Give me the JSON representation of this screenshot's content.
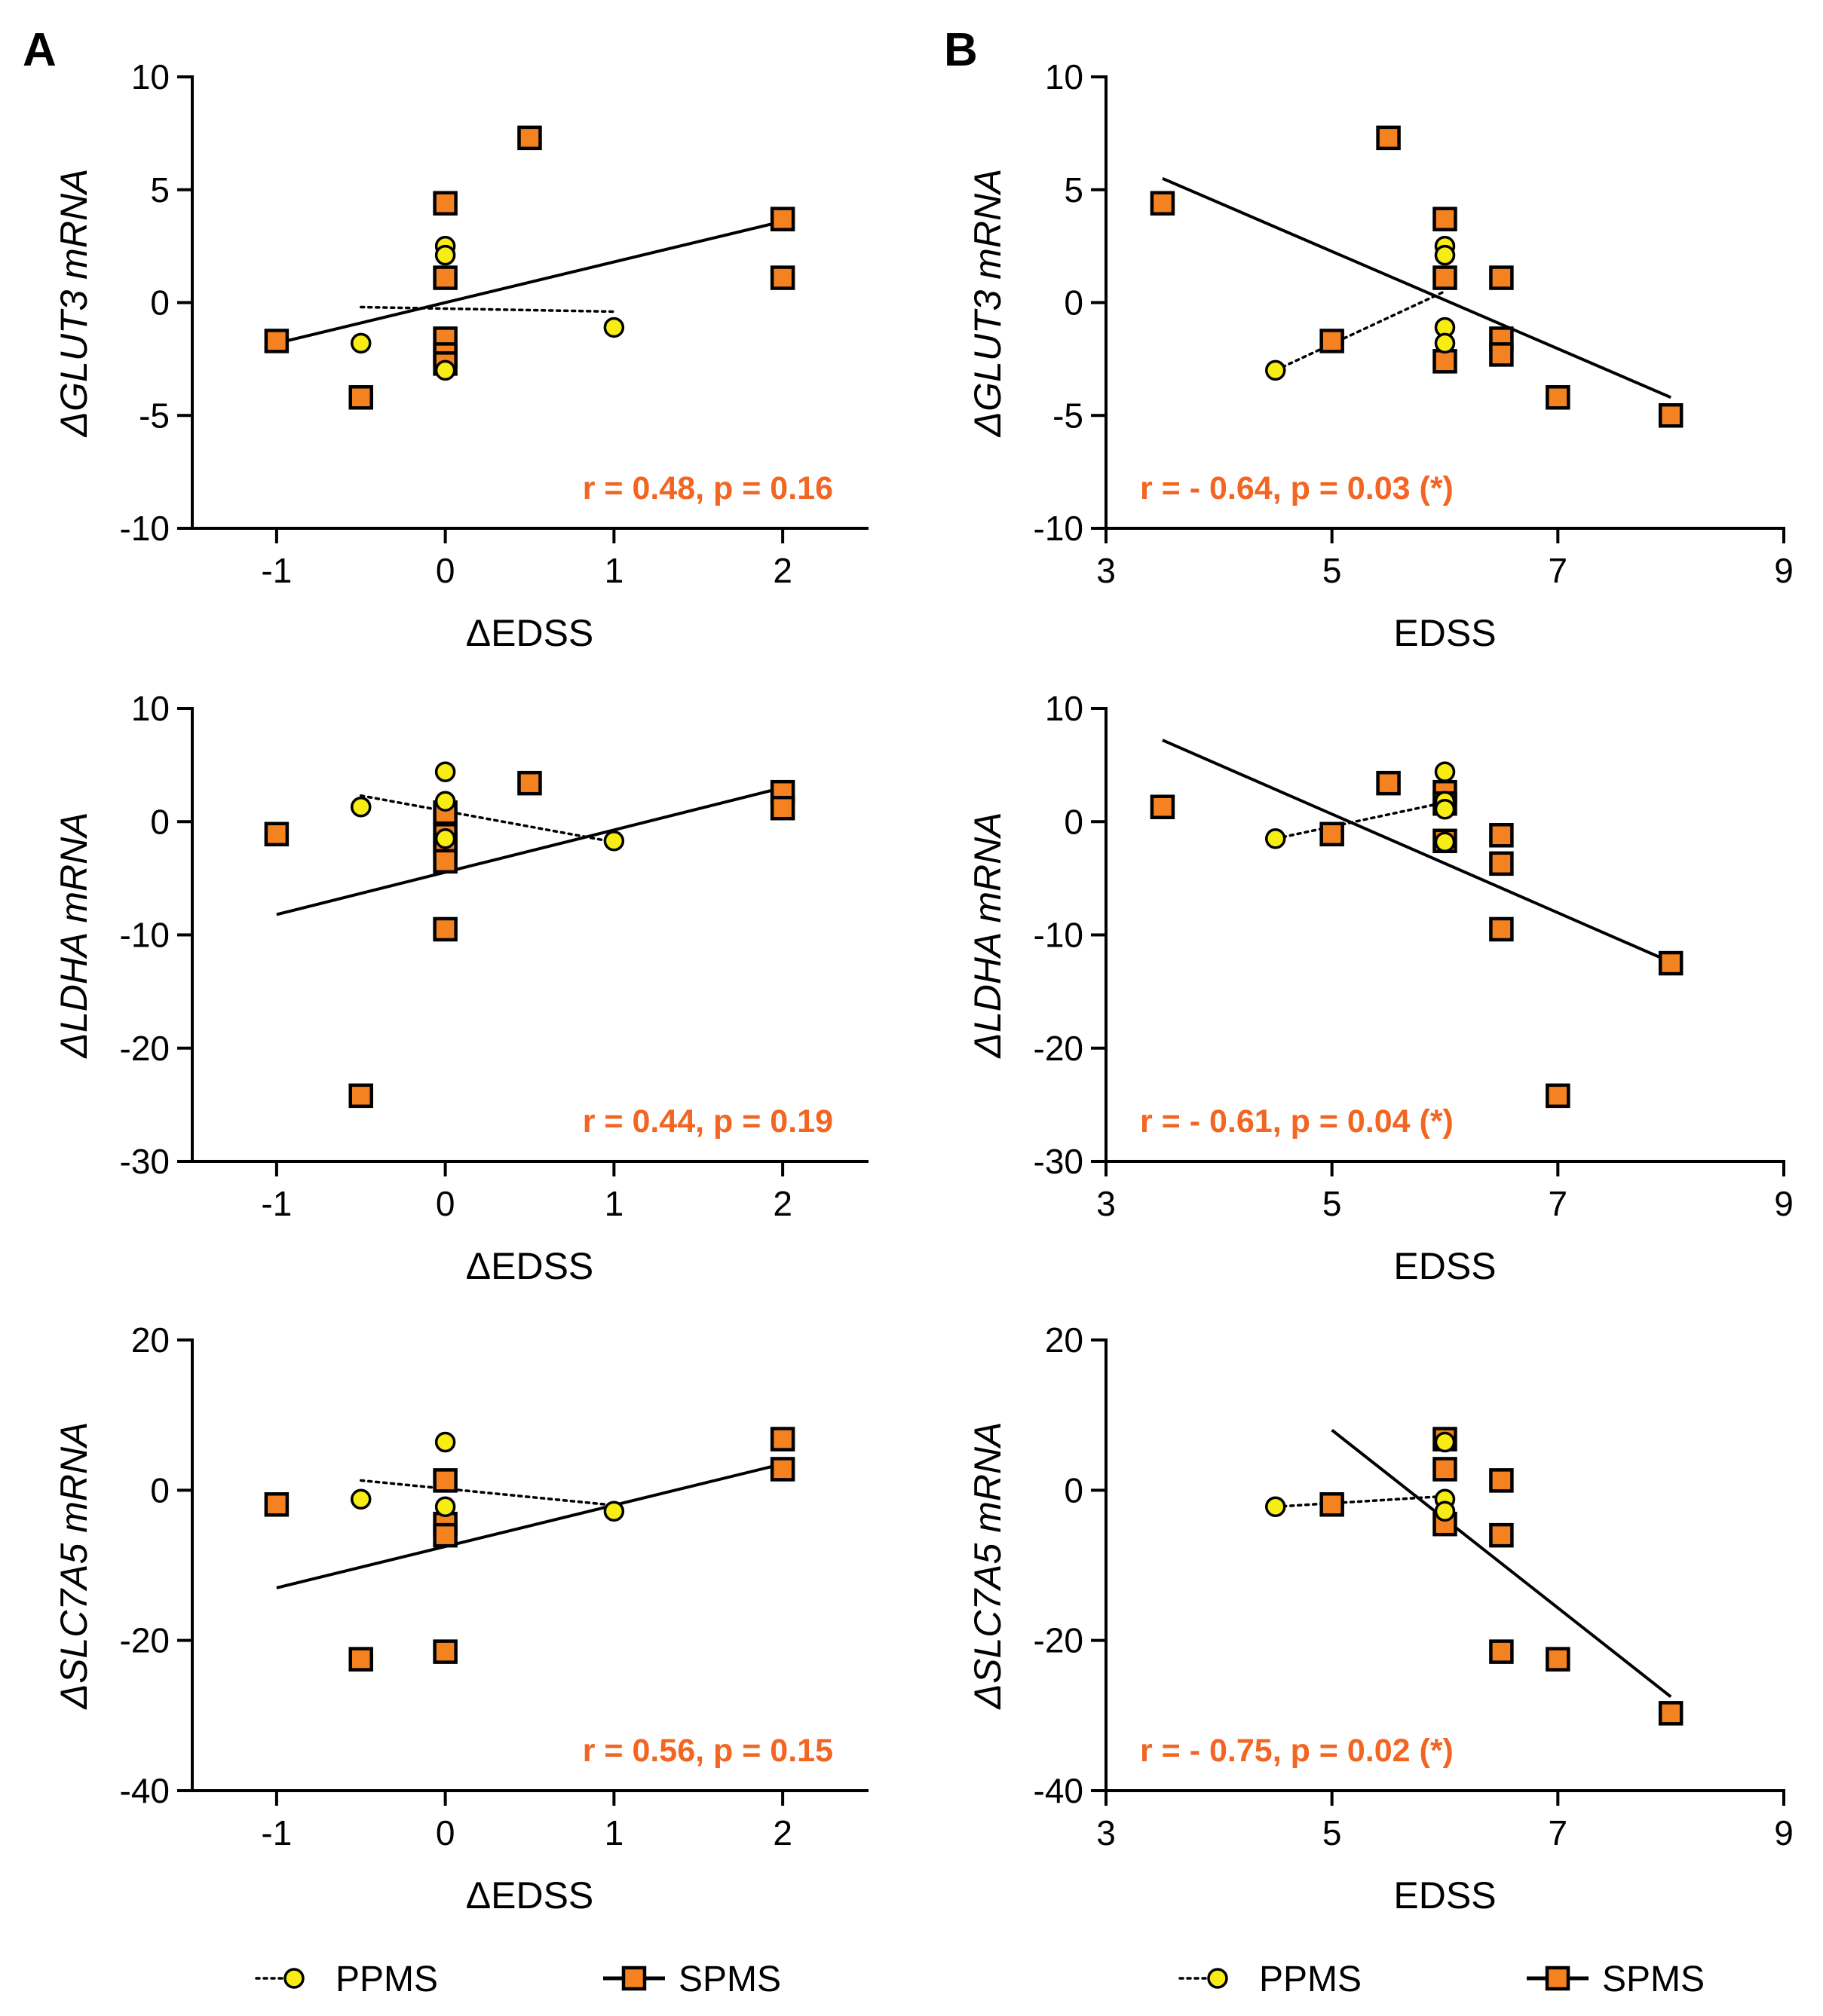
{
  "panel_labels": [
    "A",
    "B"
  ],
  "legends": [
    {
      "ppms_label": "PPMS",
      "spms_label": "SPMS"
    },
    {
      "ppms_label": "PPMS",
      "spms_label": "SPMS"
    }
  ],
  "colors": {
    "ppms_fill": "#f7ec13",
    "spms_fill": "#f58220",
    "annotation": "#f26522",
    "ink": "#000000"
  },
  "chart_data": [
    {
      "type": "scatter",
      "panel": "A",
      "row": 0,
      "ylabel": "ΔGLUT3 mRNA",
      "xlabel": "ΔEDSS",
      "xlim": [
        -1.5,
        2.5
      ],
      "xticks": [
        -1,
        0,
        1,
        2
      ],
      "xtick_labels": [
        "-1",
        "0",
        "1",
        "2"
      ],
      "ylim": [
        -10,
        10
      ],
      "yticks": [
        10,
        5,
        0,
        -5,
        -10
      ],
      "ytick_labels": [
        "10",
        "5",
        "0",
        "-5",
        "-10"
      ],
      "annotation": "r = 0.48, p = 0.16",
      "annotation_position": "bottom-right",
      "series": [
        {
          "name": "SPMS",
          "marker": "square",
          "points": [
            [
              -1,
              -1.7
            ],
            [
              -0.5,
              -4.2
            ],
            [
              0,
              4.4
            ],
            [
              0,
              1.1
            ],
            [
              0,
              -1.6
            ],
            [
              0,
              -2.3
            ],
            [
              0,
              -2.7
            ],
            [
              0.5,
              7.3
            ],
            [
              2,
              3.7
            ],
            [
              2,
              1.1
            ]
          ],
          "fit": [
            [
              -1,
              -1.8
            ],
            [
              2,
              3.6
            ]
          ]
        },
        {
          "name": "PPMS",
          "marker": "circle",
          "points": [
            [
              -0.5,
              -1.8
            ],
            [
              0,
              2.5
            ],
            [
              0,
              2.1
            ],
            [
              0,
              -3.0
            ],
            [
              1,
              -1.1
            ]
          ],
          "fit": [
            [
              -0.5,
              -0.2
            ],
            [
              1,
              -0.4
            ]
          ]
        }
      ]
    },
    {
      "type": "scatter",
      "panel": "B",
      "row": 0,
      "ylabel": "ΔGLUT3 mRNA",
      "xlabel": "EDSS",
      "xlim": [
        3,
        9
      ],
      "xticks": [
        3,
        5,
        7,
        9
      ],
      "xtick_labels": [
        "3",
        "5",
        "7",
        "9"
      ],
      "ylim": [
        -10,
        10
      ],
      "yticks": [
        10,
        5,
        0,
        -5,
        -10
      ],
      "ytick_labels": [
        "10",
        "5",
        "0",
        "-5",
        "-10"
      ],
      "annotation": "r = - 0.64, p = 0.03 (*)",
      "annotation_position": "bottom-left",
      "series": [
        {
          "name": "SPMS",
          "marker": "square",
          "points": [
            [
              3.5,
              4.4
            ],
            [
              5,
              -1.7
            ],
            [
              5.5,
              7.3
            ],
            [
              6,
              3.7
            ],
            [
              6,
              1.1
            ],
            [
              6,
              -2.6
            ],
            [
              6.5,
              1.1
            ],
            [
              6.5,
              -1.6
            ],
            [
              6.5,
              -2.3
            ],
            [
              7,
              -4.2
            ],
            [
              8,
              -5.0
            ]
          ],
          "fit": [
            [
              3.5,
              5.5
            ],
            [
              8,
              -4.2
            ]
          ]
        },
        {
          "name": "PPMS",
          "marker": "circle",
          "points": [
            [
              4.5,
              -3.0
            ],
            [
              6,
              2.5
            ],
            [
              6,
              2.1
            ],
            [
              6,
              -1.1
            ],
            [
              6,
              -1.8
            ]
          ],
          "fit": [
            [
              4.5,
              -3.0
            ],
            [
              6,
              0.5
            ]
          ]
        }
      ]
    },
    {
      "type": "scatter",
      "panel": "A",
      "row": 1,
      "ylabel": "ΔLDHA mRNA",
      "xlabel": "ΔEDSS",
      "xlim": [
        -1.5,
        2.5
      ],
      "xticks": [
        -1,
        0,
        1,
        2
      ],
      "xtick_labels": [
        "-1",
        "0",
        "1",
        "2"
      ],
      "ylim": [
        -30,
        10
      ],
      "yticks": [
        10,
        0,
        -10,
        -20,
        -30
      ],
      "ytick_labels": [
        "10",
        "0",
        "-10",
        "-20",
        "-30"
      ],
      "annotation": "r = 0.44, p = 0.19",
      "annotation_position": "bottom-right",
      "series": [
        {
          "name": "SPMS",
          "marker": "square",
          "points": [
            [
              -1,
              -1.1
            ],
            [
              -0.5,
              -24.2
            ],
            [
              0,
              0.8
            ],
            [
              0,
              -1.2
            ],
            [
              0,
              -2.1
            ],
            [
              0,
              -3.5
            ],
            [
              0,
              -9.5
            ],
            [
              0.5,
              3.4
            ],
            [
              2,
              2.6
            ],
            [
              2,
              1.2
            ]
          ],
          "fit": [
            [
              -1,
              -8.2
            ],
            [
              2,
              3.0
            ]
          ]
        },
        {
          "name": "PPMS",
          "marker": "circle",
          "points": [
            [
              -0.5,
              1.3
            ],
            [
              0,
              4.4
            ],
            [
              0,
              1.8
            ],
            [
              0,
              -1.5
            ],
            [
              1,
              -1.7
            ]
          ],
          "fit": [
            [
              -0.5,
              2.3
            ],
            [
              1,
              -1.8
            ]
          ]
        }
      ]
    },
    {
      "type": "scatter",
      "panel": "B",
      "row": 1,
      "ylabel": "ΔLDHA mRNA",
      "xlabel": "EDSS",
      "xlim": [
        3,
        9
      ],
      "xticks": [
        3,
        5,
        7,
        9
      ],
      "xtick_labels": [
        "3",
        "5",
        "7",
        "9"
      ],
      "ylim": [
        -30,
        10
      ],
      "yticks": [
        10,
        0,
        -10,
        -20,
        -30
      ],
      "ytick_labels": [
        "10",
        "0",
        "-10",
        "-20",
        "-30"
      ],
      "annotation": "r = - 0.61, p = 0.04 (*)",
      "annotation_position": "bottom-left",
      "series": [
        {
          "name": "SPMS",
          "marker": "square",
          "points": [
            [
              3.5,
              1.3
            ],
            [
              5,
              -1.1
            ],
            [
              5.5,
              3.4
            ],
            [
              6,
              2.6
            ],
            [
              6,
              1.6
            ],
            [
              6,
              -1.7
            ],
            [
              6.5,
              -1.2
            ],
            [
              6.5,
              -3.7
            ],
            [
              6.5,
              -9.5
            ],
            [
              7,
              -24.2
            ],
            [
              8,
              -12.5
            ]
          ],
          "fit": [
            [
              3.5,
              7.2
            ],
            [
              8,
              -12.4
            ]
          ]
        },
        {
          "name": "PPMS",
          "marker": "circle",
          "points": [
            [
              4.5,
              -1.5
            ],
            [
              6,
              4.4
            ],
            [
              6,
              1.8
            ],
            [
              6,
              1.1
            ],
            [
              6,
              -1.8
            ]
          ],
          "fit": [
            [
              4.5,
              -1.5
            ],
            [
              6,
              1.7
            ]
          ]
        }
      ]
    },
    {
      "type": "scatter",
      "panel": "A",
      "row": 2,
      "ylabel": "ΔSLC7A5 mRNA",
      "xlabel": "ΔEDSS",
      "xlim": [
        -1.5,
        2.5
      ],
      "xticks": [
        -1,
        0,
        1,
        2
      ],
      "xtick_labels": [
        "-1",
        "0",
        "1",
        "2"
      ],
      "ylim": [
        -40,
        20
      ],
      "yticks": [
        20,
        0,
        -20,
        -40
      ],
      "ytick_labels": [
        "20",
        "0",
        "-20",
        "-40"
      ],
      "annotation": "r = 0.56, p = 0.15",
      "annotation_position": "bottom-right",
      "series": [
        {
          "name": "SPMS",
          "marker": "square",
          "points": [
            [
              -1,
              -1.9
            ],
            [
              -0.5,
              -22.5
            ],
            [
              0,
              1.3
            ],
            [
              0,
              -4.5
            ],
            [
              0,
              -6.0
            ],
            [
              0,
              -21.5
            ],
            [
              2,
              6.8
            ],
            [
              2,
              2.8
            ]
          ],
          "fit": [
            [
              -1,
              -13.0
            ],
            [
              2,
              3.5
            ]
          ]
        },
        {
          "name": "PPMS",
          "marker": "circle",
          "points": [
            [
              -0.5,
              -1.2
            ],
            [
              0,
              6.4
            ],
            [
              0,
              -2.2
            ],
            [
              1,
              -2.8
            ]
          ],
          "fit": [
            [
              -0.5,
              1.3
            ],
            [
              1,
              -2.0
            ]
          ]
        }
      ]
    },
    {
      "type": "scatter",
      "panel": "B",
      "row": 2,
      "ylabel": "ΔSLC7A5 mRNA",
      "xlabel": "EDSS",
      "xlim": [
        3,
        9
      ],
      "xticks": [
        3,
        5,
        7,
        9
      ],
      "xtick_labels": [
        "3",
        "5",
        "7",
        "9"
      ],
      "ylim": [
        -40,
        20
      ],
      "yticks": [
        20,
        0,
        -20,
        -40
      ],
      "ytick_labels": [
        "20",
        "0",
        "-20",
        "-40"
      ],
      "annotation": "r = - 0.75, p = 0.02 (*)",
      "annotation_position": "bottom-left",
      "series": [
        {
          "name": "SPMS",
          "marker": "square",
          "points": [
            [
              5,
              -1.9
            ],
            [
              6,
              6.8
            ],
            [
              6,
              2.8
            ],
            [
              6,
              -4.5
            ],
            [
              6.5,
              1.3
            ],
            [
              6.5,
              -6.0
            ],
            [
              6.5,
              -21.5
            ],
            [
              7,
              -22.5
            ],
            [
              8,
              -29.7
            ]
          ],
          "fit": [
            [
              5,
              8.0
            ],
            [
              8,
              -27.5
            ]
          ]
        },
        {
          "name": "PPMS",
          "marker": "circle",
          "points": [
            [
              4.5,
              -2.2
            ],
            [
              6,
              6.4
            ],
            [
              6,
              -1.2
            ],
            [
              6,
              -2.8
            ]
          ],
          "fit": [
            [
              4.5,
              -2.2
            ],
            [
              6,
              -0.8
            ]
          ]
        }
      ]
    }
  ]
}
